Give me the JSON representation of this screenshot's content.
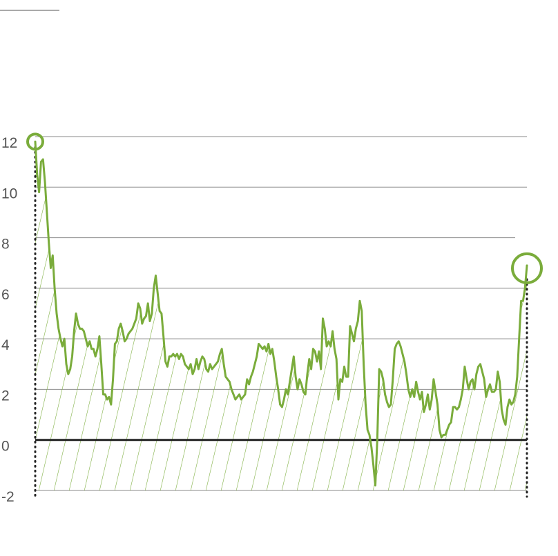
{
  "colors": {
    "series": "#7aac3b",
    "hatch": "#7aac3b",
    "grid": "#8a8a8a",
    "zero": "#222222"
  },
  "chart_data": {
    "type": "area",
    "title": "",
    "xlabel": "",
    "ylabel": "",
    "ylim": [
      -2,
      12
    ],
    "yticks": [
      "12",
      "10",
      "8",
      "6",
      "4",
      "2",
      "0",
      "-2"
    ],
    "grid": true,
    "legend": "none",
    "series": [
      {
        "values": [
          11.8,
          10.5,
          9.8,
          11.0,
          11.1,
          10.2,
          9.0,
          7.8,
          6.8,
          7.3,
          6.0,
          5.0,
          4.4,
          4.0,
          3.7,
          4.0,
          3.0,
          2.6,
          2.8,
          3.3,
          4.3,
          5.0,
          4.6,
          4.4,
          4.4,
          4.3,
          4.0,
          3.7,
          3.9,
          3.6,
          3.6,
          3.3,
          3.6,
          4.1,
          3.0,
          1.8,
          1.8,
          1.6,
          1.7,
          1.4,
          2.4,
          3.8,
          3.9,
          4.4,
          4.6,
          4.3,
          3.9,
          4.0,
          4.2,
          4.3,
          4.4,
          4.6,
          4.8,
          5.4,
          5.2,
          4.6,
          4.8,
          4.9,
          5.4,
          4.7,
          5.0,
          6.0,
          6.5,
          5.8,
          5.1,
          5.0,
          4.1,
          3.1,
          2.9,
          3.3,
          3.3,
          3.4,
          3.3,
          3.4,
          3.2,
          3.4,
          3.3,
          3.0,
          2.9,
          2.8,
          3.0,
          2.6,
          2.8,
          3.2,
          2.8,
          3.1,
          3.3,
          3.2,
          2.8,
          2.7,
          3.0,
          2.8,
          2.9,
          3.0,
          3.1,
          3.4,
          3.6,
          3.0,
          2.5,
          2.4,
          2.3,
          2.0,
          1.8,
          1.6,
          1.7,
          1.8,
          1.6,
          1.7,
          1.8,
          2.4,
          2.2,
          2.5,
          2.7,
          3.0,
          3.3,
          3.8,
          3.7,
          3.6,
          3.7,
          3.5,
          3.8,
          3.4,
          3.6,
          3.1,
          2.5,
          2.0,
          1.4,
          1.3,
          1.6,
          2.0,
          1.8,
          2.3,
          2.8,
          3.3,
          2.5,
          2.0,
          2.4,
          2.2,
          1.9,
          1.8,
          2.6,
          3.2,
          2.8,
          3.6,
          3.5,
          3.1,
          3.5,
          2.8,
          4.8,
          4.4,
          3.7,
          3.9,
          3.7,
          4.3,
          3.6,
          3.2,
          1.6,
          2.4,
          2.3,
          2.9,
          2.5,
          2.5,
          4.5,
          4.2,
          3.9,
          4.4,
          4.7,
          5.5,
          5.1,
          3.0,
          1.4,
          0.4,
          0.2,
          -0.3,
          -1.0,
          -1.8,
          0.0,
          2.8,
          2.7,
          2.4,
          1.8,
          1.5,
          1.3,
          1.4,
          2.4,
          3.6,
          3.8,
          3.9,
          3.7,
          3.4,
          3.1,
          2.6,
          2.0,
          1.7,
          2.0,
          1.7,
          2.3,
          1.9,
          1.6,
          1.9,
          1.1,
          1.4,
          1.8,
          1.2,
          1.6,
          2.4,
          1.9,
          1.4,
          0.4,
          0.1,
          0.2,
          0.2,
          0.4,
          0.6,
          0.7,
          1.3,
          1.3,
          1.2,
          1.3,
          1.6,
          2.0,
          2.9,
          2.4,
          2.0,
          2.3,
          2.4,
          2.0,
          2.6,
          2.9,
          3.0,
          2.7,
          2.4,
          1.7,
          2.0,
          2.2,
          1.9,
          1.9,
          2.0,
          2.7,
          2.3,
          1.2,
          0.8,
          0.6,
          1.3,
          1.6,
          1.4,
          1.5,
          1.8,
          2.5,
          4.0,
          5.5,
          5.5,
          6.0,
          6.9
        ]
      }
    ]
  }
}
